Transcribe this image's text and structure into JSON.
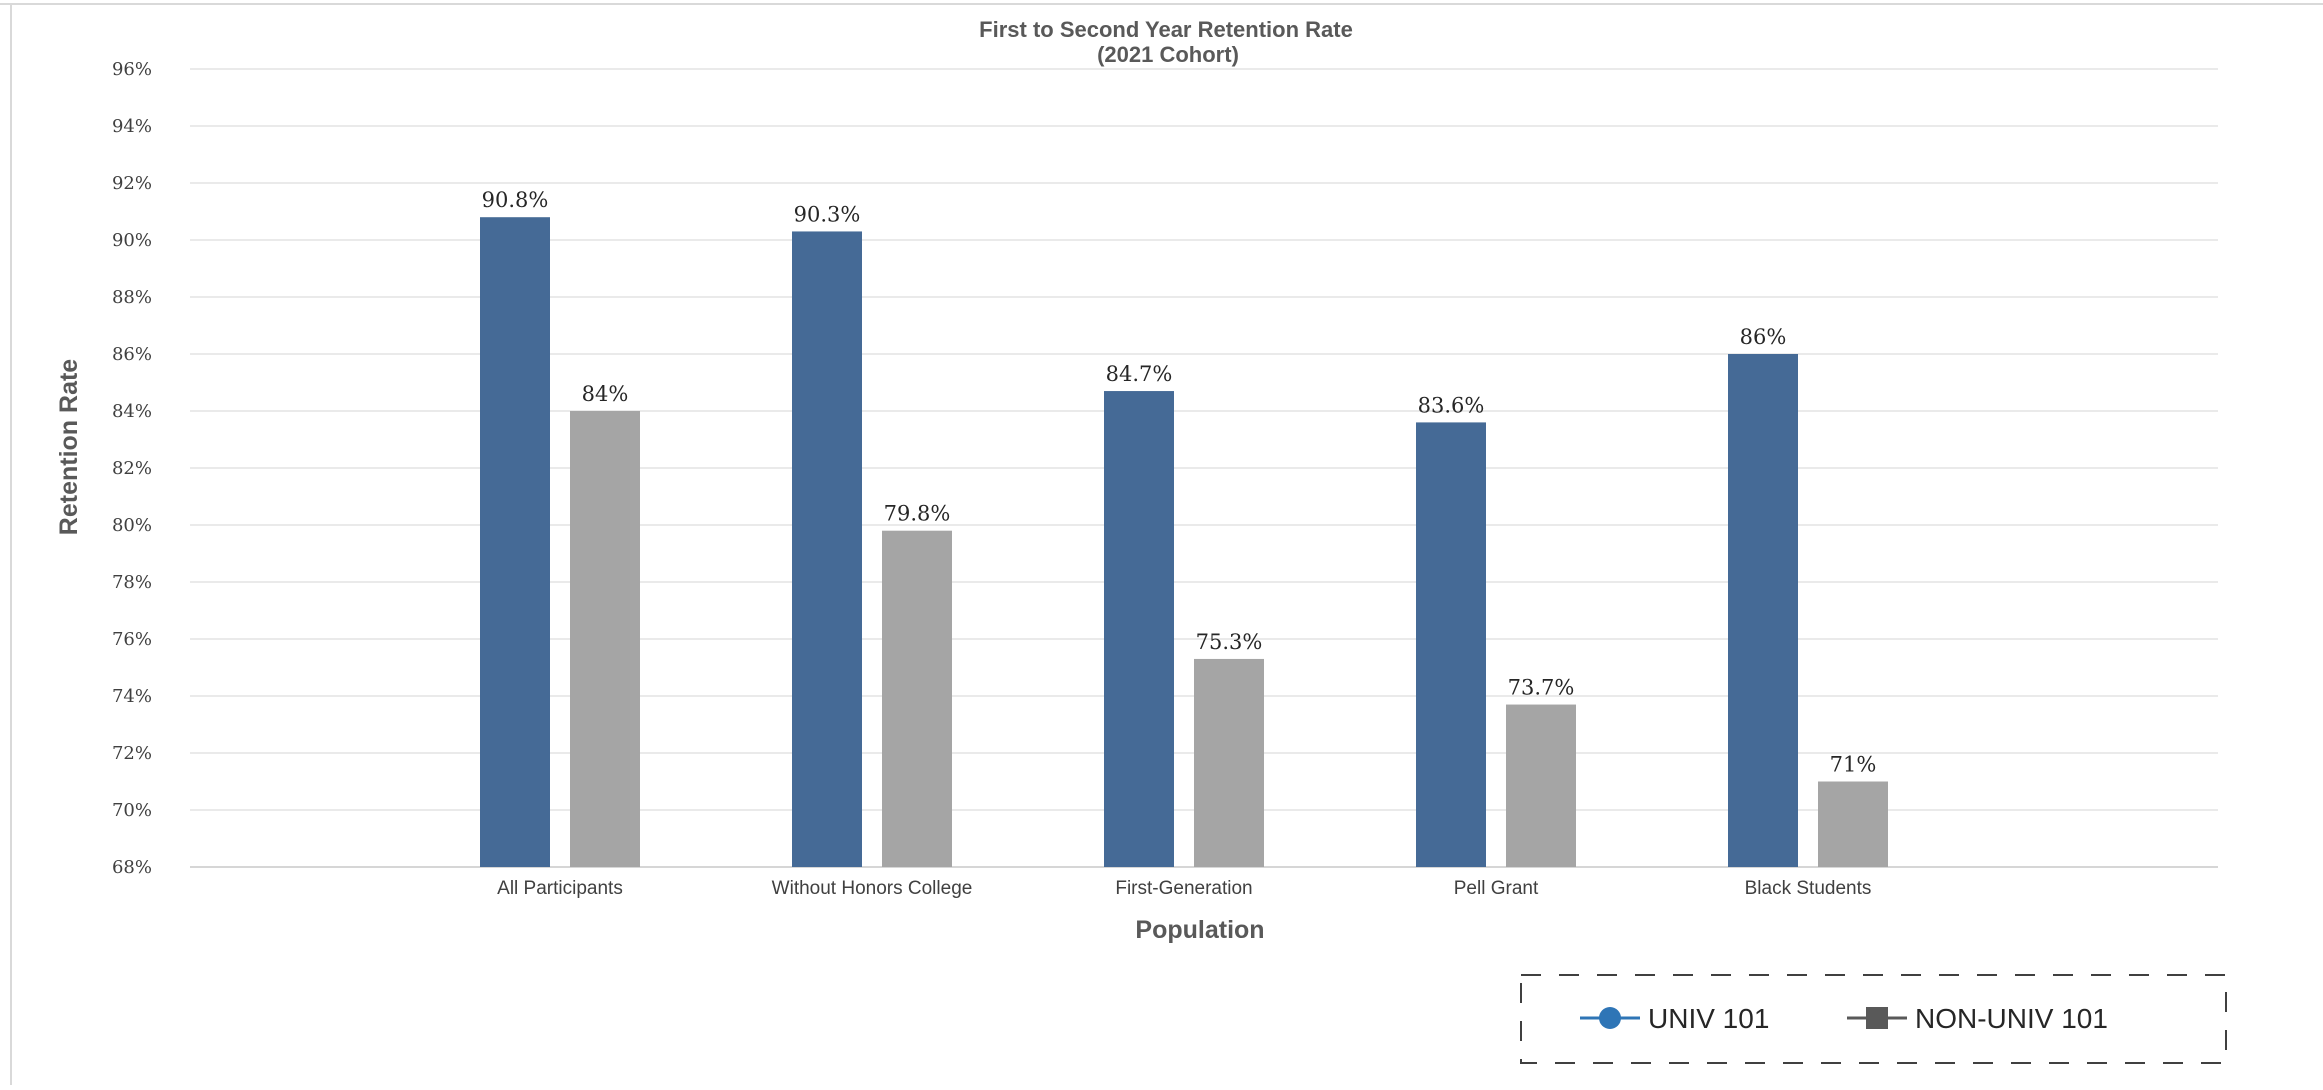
{
  "chart_data": {
    "type": "bar",
    "title": "First to Second Year Retention Rate",
    "subtitle": "(2021 Cohort)",
    "xlabel": "Population",
    "ylabel": "Retention Rate",
    "ylim": [
      68,
      96
    ],
    "ytick_step": 2,
    "ytick_suffix": "%",
    "grid": true,
    "legend_position": "bottom-right",
    "categories": [
      "All Participants",
      "Without Honors College",
      "First-Generation",
      "Pell Grant",
      "Black Students"
    ],
    "series": [
      {
        "name": "UNIV 101",
        "color": "#456A96",
        "legend_marker_color": "#2E75B6",
        "legend_marker": "circle",
        "values": [
          90.8,
          90.3,
          84.7,
          83.6,
          86
        ],
        "labels": [
          "90.8%",
          "90.3%",
          "84.7%",
          "83.6%",
          "86%"
        ]
      },
      {
        "name": "NON-UNIV 101",
        "color": "#A5A5A5",
        "legend_marker_color": "#595959",
        "legend_marker": "square",
        "values": [
          84,
          79.8,
          75.3,
          73.7,
          71
        ],
        "labels": [
          "84%",
          "79.8%",
          "75.3%",
          "73.7%",
          "71%"
        ]
      }
    ]
  }
}
